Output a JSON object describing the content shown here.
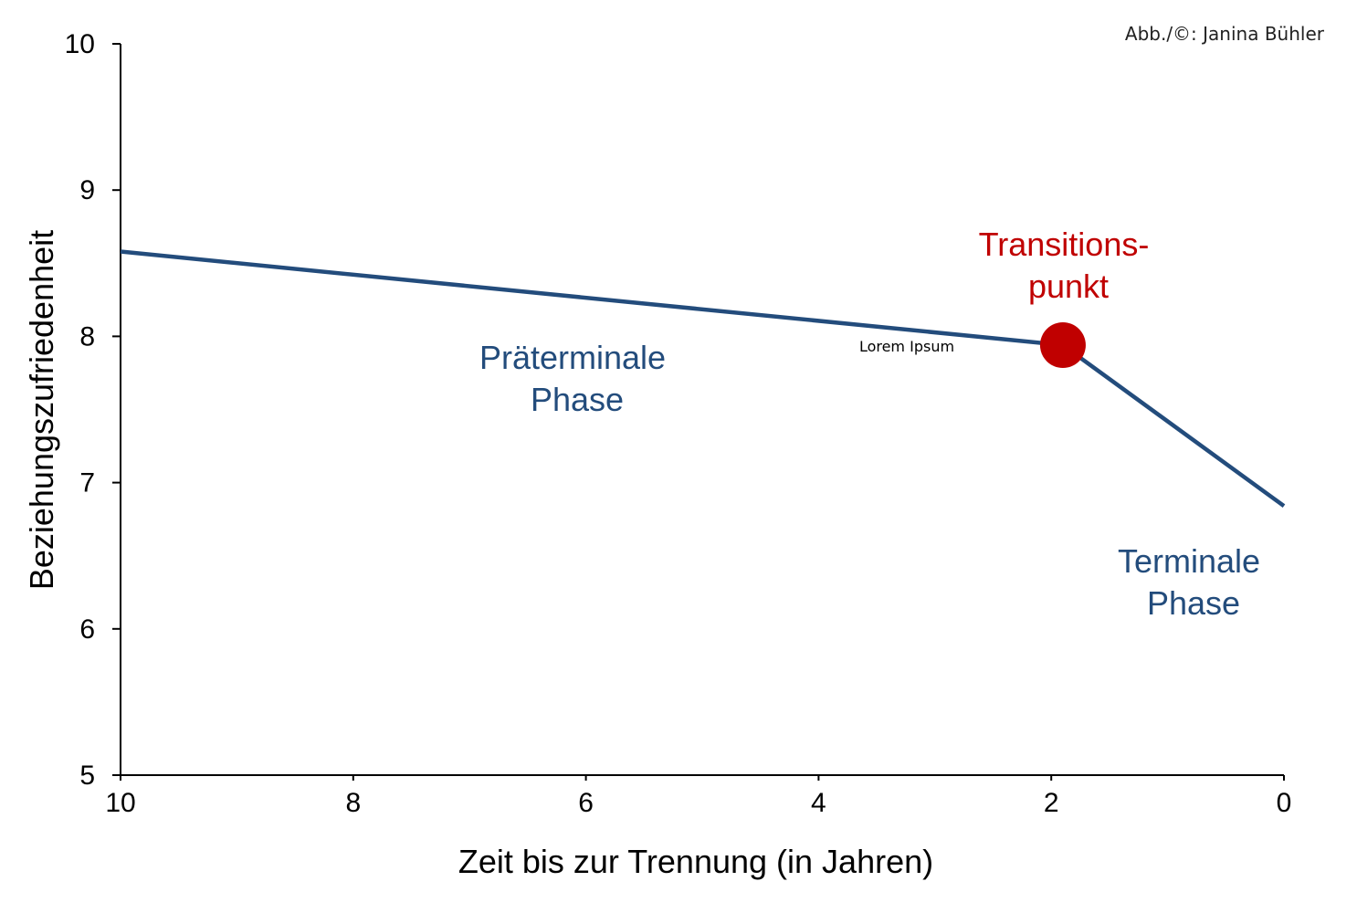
{
  "chart_data": {
    "type": "line",
    "xlabel": "Zeit bis zur Trennung (in Jahren)",
    "ylabel": "Beziehungszufriedenheit",
    "xlim": [
      10,
      0
    ],
    "ylim": [
      5,
      10
    ],
    "x_reversed": true,
    "x_ticks": [
      "10",
      "8",
      "6",
      "4",
      "2",
      "0"
    ],
    "y_ticks": [
      "5",
      "6",
      "7",
      "8",
      "9",
      "10"
    ],
    "grid": false,
    "series": [
      {
        "x": [
          10,
          1.9,
          0
        ],
        "y": [
          8.58,
          7.94,
          6.84
        ],
        "color": "#234c7c"
      }
    ],
    "transition_point": {
      "x": 1.9,
      "y": 7.94,
      "color": "#c00000"
    },
    "annotations": {
      "praeterminal": [
        "Präterminale",
        "Phase"
      ],
      "terminal": [
        "Terminale",
        "Phase"
      ],
      "transition": [
        "Transitions-",
        "punkt"
      ],
      "point_label": "Lorem Ipsum"
    }
  },
  "credit": "Abb./©: Janina Bühler"
}
